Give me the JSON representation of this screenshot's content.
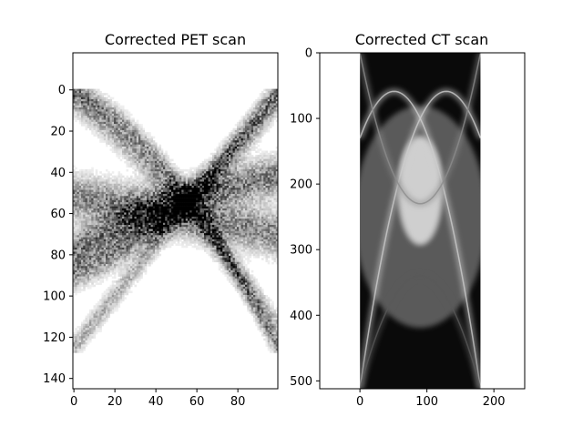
{
  "chart_data": [
    {
      "type": "heatmap",
      "title": "Corrected PET scan",
      "colormap": "gray_r",
      "xlim": [
        -0.5,
        99.5
      ],
      "ylim": [
        145,
        -18
      ],
      "xticks": [
        0,
        20,
        40,
        60,
        80
      ],
      "yticks": [
        0,
        20,
        40,
        60,
        80,
        100,
        120,
        140
      ],
      "image_shape": [
        128,
        100
      ],
      "curves": [
        {
          "description": "sinogram trace",
          "y_at_x0": 0,
          "y_at_x50": 45,
          "y_at_x100": 125,
          "spread": 6,
          "intensity": 0.45
        },
        {
          "description": "sinogram trace",
          "y_at_x0": 5,
          "y_at_x50": 52,
          "y_at_x100": 115,
          "spread": 7,
          "intensity": 0.35
        },
        {
          "description": "sinogram trace",
          "y_at_x0": 90,
          "y_at_x50": 58,
          "y_at_x100": 5,
          "spread": 7,
          "intensity": 0.45
        },
        {
          "description": "sinogram trace",
          "y_at_x0": 125,
          "y_at_x50": 62,
          "y_at_x100": 0,
          "spread": 6,
          "intensity": 0.35
        },
        {
          "description": "sinogram trace",
          "y_at_x0": 78,
          "y_at_x50": 55,
          "y_at_x100": 42,
          "spread": 9,
          "intensity": 0.6
        },
        {
          "description": "sinogram trace",
          "y_at_x0": 52,
          "y_at_x50": 60,
          "y_at_x100": 70,
          "spread": 10,
          "intensity": 0.55
        }
      ]
    },
    {
      "type": "heatmap",
      "title": "Corrected CT scan",
      "colormap": "gray",
      "xlim": [
        -60,
        246
      ],
      "ylim": [
        512,
        0
      ],
      "xticks": [
        0,
        100,
        200
      ],
      "yticks": [
        0,
        100,
        200,
        300,
        400,
        500
      ],
      "image_extent": {
        "x": [
          0,
          180
        ],
        "y": [
          0,
          512
        ]
      },
      "curves": [
        {
          "description": "bright sinogram trace",
          "y_at_x0": 130,
          "y_at_x90": 100,
          "y_at_x180": 512,
          "intensity": 0.8
        },
        {
          "description": "bright sinogram trace",
          "y_at_x0": 512,
          "y_at_x90": 100,
          "y_at_x180": 130,
          "intensity": 0.8
        },
        {
          "description": "upper arch",
          "y_at_x0": 0,
          "y_at_x90": 230,
          "y_at_x180": 0,
          "intensity": 0.55
        },
        {
          "description": "lower arch",
          "y_at_x0": 512,
          "y_at_x90": 340,
          "y_at_x180": 512,
          "intensity": 0.35
        }
      ]
    }
  ]
}
